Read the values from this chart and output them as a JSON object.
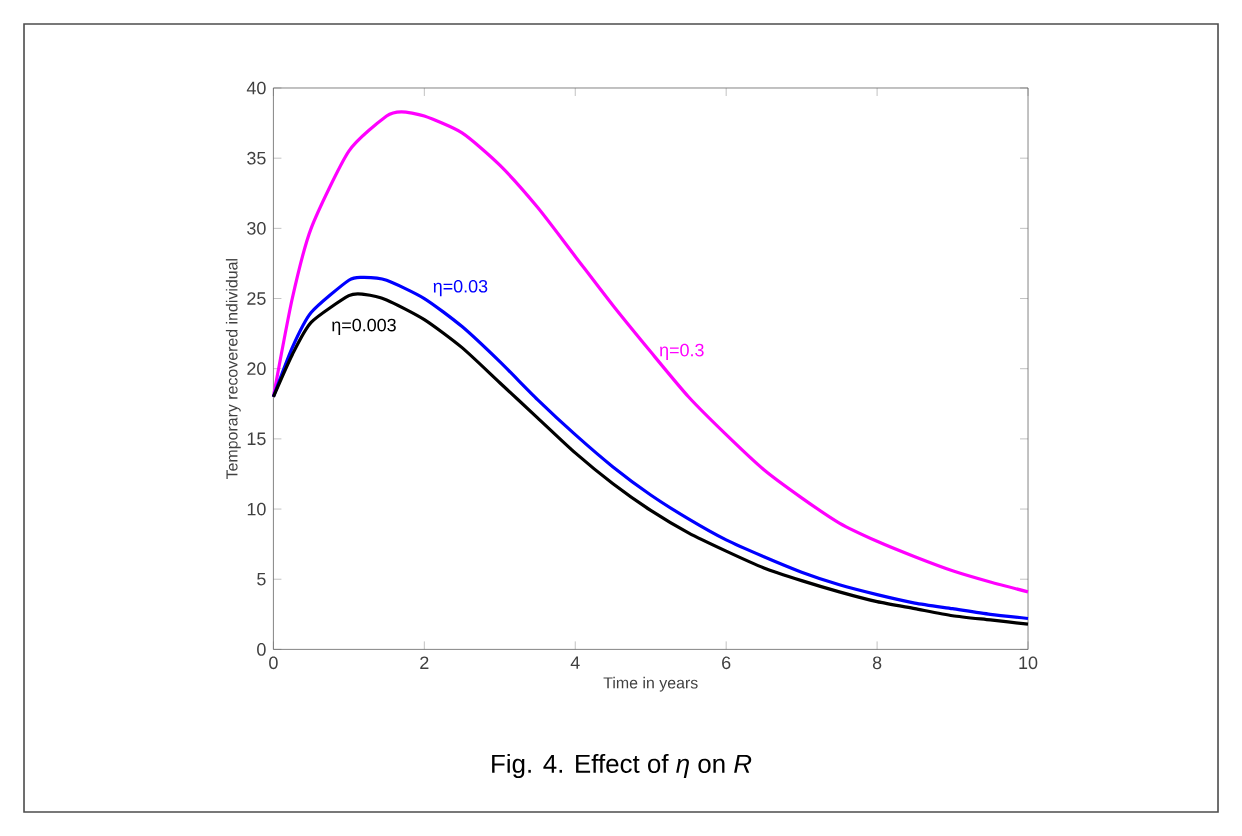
{
  "chart_data": {
    "type": "line",
    "title": "Fig. 4. Effect of *η* on *R*",
    "xlabel": "Time in years",
    "ylabel": "Temporary recovered individual",
    "xlim": [
      0,
      10
    ],
    "ylim": [
      0,
      40
    ],
    "xticks": [
      0,
      2,
      4,
      6,
      8,
      10
    ],
    "yticks": [
      0,
      5,
      10,
      15,
      20,
      25,
      30,
      35,
      40
    ],
    "grid": false,
    "legend": false,
    "marker": "none",
    "line_style": "solid",
    "series": [
      {
        "name": "η=0.3",
        "color": "#ff00ff",
        "x": [
          0,
          0.25,
          0.5,
          1,
          1.5,
          1.7,
          2,
          2.5,
          3,
          3.5,
          4,
          4.5,
          5,
          5.5,
          6,
          6.5,
          7,
          7.5,
          8,
          8.5,
          9,
          9.5,
          10
        ],
        "values": [
          18,
          25,
          30,
          35.5,
          38,
          38.3,
          38,
          36.8,
          34.5,
          31.5,
          28,
          24.5,
          21.2,
          18,
          15.3,
          12.8,
          10.8,
          9,
          7.7,
          6.6,
          5.6,
          4.8,
          4.1
        ]
      },
      {
        "name": "η=0.03",
        "color": "#0000ff",
        "x": [
          0,
          0.25,
          0.5,
          1,
          1.2,
          1.5,
          2,
          2.5,
          3,
          3.5,
          4,
          4.5,
          5,
          5.5,
          6,
          6.5,
          7,
          7.5,
          8,
          8.5,
          9,
          9.5,
          10
        ],
        "values": [
          18,
          21.5,
          24,
          26.3,
          26.5,
          26.3,
          25,
          23,
          20.5,
          17.8,
          15.3,
          13,
          11,
          9.3,
          7.8,
          6.6,
          5.5,
          4.6,
          3.9,
          3.3,
          2.9,
          2.5,
          2.2
        ]
      },
      {
        "name": "η=0.003",
        "color": "#000000",
        "x": [
          0,
          0.25,
          0.5,
          1,
          1.2,
          1.5,
          2,
          2.5,
          3,
          3.5,
          4,
          4.5,
          5,
          5.5,
          6,
          6.5,
          7,
          7.5,
          8,
          8.5,
          9,
          9.5,
          10
        ],
        "values": [
          18,
          21,
          23.3,
          25.2,
          25.3,
          24.9,
          23.5,
          21.5,
          19,
          16.5,
          14,
          11.8,
          9.9,
          8.3,
          7,
          5.8,
          4.9,
          4.1,
          3.4,
          2.9,
          2.4,
          2.1,
          1.8
        ]
      }
    ]
  }
}
